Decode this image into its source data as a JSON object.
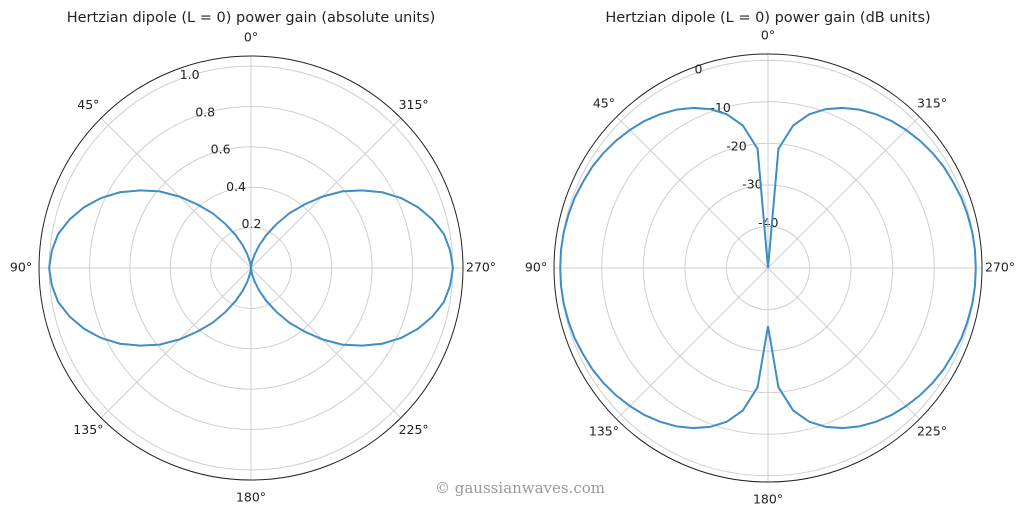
{
  "chart_data": [
    {
      "type": "polar",
      "title": "Hertzian dipole (L = 0) power gain (absolute units)",
      "x": [
        0,
        5,
        10,
        15,
        20,
        25,
        30,
        35,
        40,
        45,
        50,
        55,
        60,
        65,
        70,
        75,
        80,
        85,
        90,
        95,
        100,
        105,
        110,
        115,
        120,
        125,
        130,
        135,
        140,
        145,
        150,
        155,
        160,
        165,
        170,
        175,
        180,
        185,
        190,
        195,
        200,
        205,
        210,
        215,
        220,
        225,
        230,
        235,
        240,
        245,
        250,
        255,
        260,
        265,
        270,
        275,
        280,
        285,
        290,
        295,
        300,
        305,
        310,
        315,
        320,
        325,
        330,
        335,
        340,
        345,
        350,
        355,
        360
      ],
      "series": [
        {
          "color": "#3f8dc4",
          "values": [
            0,
            0.01,
            0.03,
            0.07,
            0.12,
            0.18,
            0.25,
            0.33,
            0.41,
            0.5,
            0.59,
            0.67,
            0.75,
            0.82,
            0.88,
            0.93,
            0.97,
            0.99,
            1,
            0.99,
            0.97,
            0.93,
            0.88,
            0.82,
            0.75,
            0.67,
            0.59,
            0.5,
            0.41,
            0.33,
            0.25,
            0.18,
            0.12,
            0.07,
            0.03,
            0.01,
            0,
            0.01,
            0.03,
            0.07,
            0.12,
            0.18,
            0.25,
            0.33,
            0.41,
            0.5,
            0.59,
            0.67,
            0.75,
            0.82,
            0.88,
            0.93,
            0.97,
            0.99,
            1,
            0.99,
            0.97,
            0.93,
            0.88,
            0.82,
            0.75,
            0.67,
            0.59,
            0.5,
            0.41,
            0.33,
            0.25,
            0.18,
            0.12,
            0.07,
            0.03,
            0.01,
            0
          ]
        }
      ],
      "xlim": [
        0,
        360
      ],
      "xticks": [
        {
          "value": 0,
          "label": "0°"
        },
        {
          "value": 45,
          "label": "45°"
        },
        {
          "value": 90,
          "label": "90°"
        },
        {
          "value": 135,
          "label": "135°"
        },
        {
          "value": 180,
          "label": "180°"
        },
        {
          "value": 225,
          "label": "225°"
        },
        {
          "value": 270,
          "label": "270°"
        },
        {
          "value": 315,
          "label": "315°"
        }
      ],
      "ylim": [
        0,
        1.05
      ],
      "yticks": [
        0.2,
        0.4,
        0.6,
        0.8,
        {
          "value": 1,
          "label": "1.0"
        }
      ],
      "grid": true
    },
    {
      "type": "polar",
      "title": "Hertzian dipole (L = 0) power gain (dB units)",
      "x": [
        0,
        5,
        10,
        15,
        20,
        25,
        30,
        35,
        40,
        45,
        50,
        55,
        60,
        65,
        70,
        75,
        80,
        85,
        90,
        95,
        100,
        105,
        110,
        115,
        120,
        125,
        130,
        135,
        140,
        145,
        150,
        155,
        160,
        165,
        170,
        175,
        180,
        185,
        190,
        195,
        200,
        205,
        210,
        215,
        220,
        225,
        230,
        235,
        240,
        245,
        250,
        255,
        260,
        265,
        270,
        275,
        280,
        285,
        290,
        295,
        300,
        305,
        310,
        315,
        320,
        325,
        330,
        335,
        340,
        345,
        350,
        355,
        360
      ],
      "series": [
        {
          "color": "#3f8dc4",
          "values": [
            -50,
            -21.2,
            -15.2,
            -11.7,
            -9.3,
            -7.5,
            -6.0,
            -4.8,
            -3.8,
            -3.0,
            -2.3,
            -1.7,
            -1.2,
            -0.9,
            -0.5,
            -0.3,
            -0.1,
            0,
            0,
            0,
            -0.1,
            -0.3,
            -0.5,
            -0.9,
            -1.2,
            -1.7,
            -2.3,
            -3.0,
            -3.8,
            -4.8,
            -6.0,
            -7.5,
            -9.3,
            -11.7,
            -15.2,
            -21.2,
            -36,
            -21.2,
            -15.2,
            -11.7,
            -9.3,
            -7.5,
            -6.0,
            -4.8,
            -3.8,
            -3.0,
            -2.3,
            -1.7,
            -1.2,
            -0.9,
            -0.5,
            -0.3,
            -0.1,
            0,
            0,
            0,
            -0.1,
            -0.3,
            -0.5,
            -0.9,
            -1.2,
            -1.7,
            -2.3,
            -3.0,
            -3.8,
            -4.8,
            -6.0,
            -7.5,
            -9.3,
            -11.7,
            -15.2,
            -21.2,
            -50
          ]
        }
      ],
      "xlim": [
        0,
        360
      ],
      "xticks": [
        {
          "value": 0,
          "label": "0°"
        },
        {
          "value": 45,
          "label": "45°"
        },
        {
          "value": 90,
          "label": "90°"
        },
        {
          "value": 135,
          "label": "135°"
        },
        {
          "value": 180,
          "label": "180°"
        },
        {
          "value": 225,
          "label": "225°"
        },
        {
          "value": 270,
          "label": "270°"
        },
        {
          "value": 315,
          "label": "315°"
        }
      ],
      "ylim": [
        -50,
        1.5
      ],
      "yticks": [
        0,
        -10,
        -20,
        -30,
        -40
      ],
      "grid": true,
      "watermark": "© gaussianwaves.com"
    }
  ]
}
